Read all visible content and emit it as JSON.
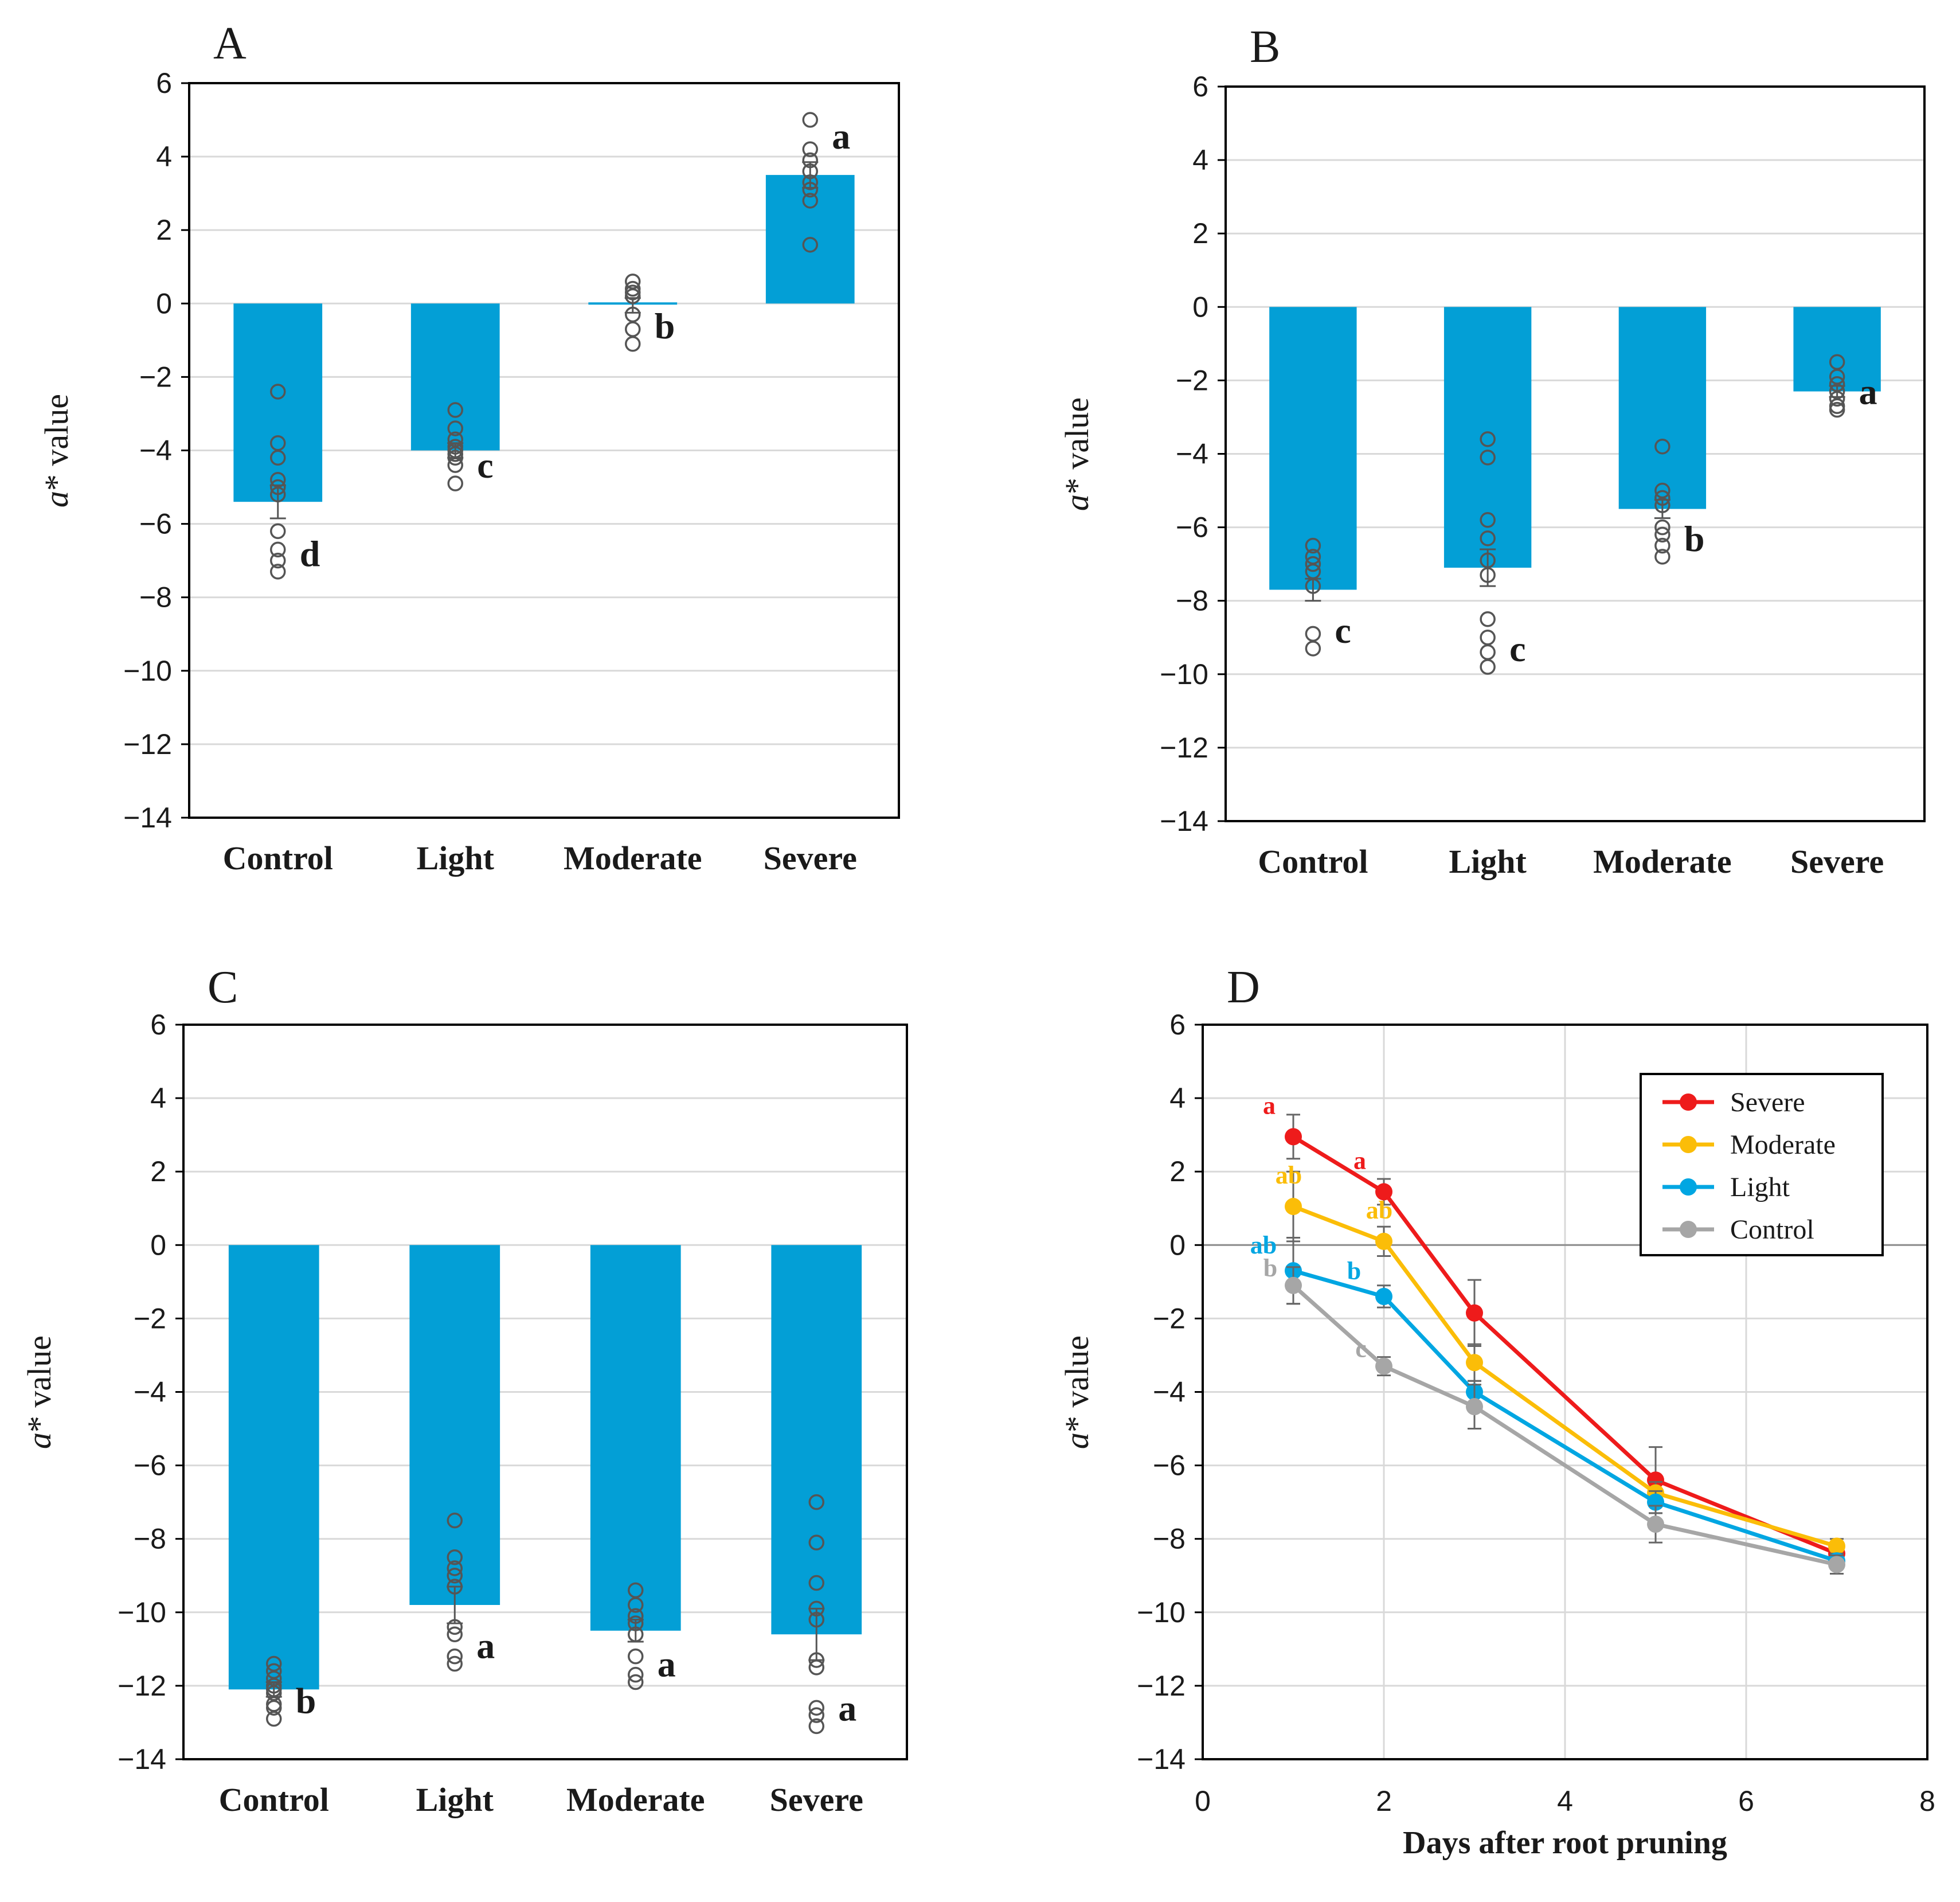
{
  "colors": {
    "bar": "#039fd6",
    "frame": "#000000",
    "grid": "#d9d9d9"
  },
  "chart_data": [
    {
      "type": "bar",
      "panel": "A",
      "ylabel": [
        "a",
        "* value"
      ],
      "ylim": [
        -14,
        6
      ],
      "yticks": [
        6,
        4,
        2,
        0,
        -2,
        -4,
        -6,
        -8,
        -10,
        -12,
        -14
      ],
      "ytick_labels": [
        "6",
        "4",
        "2",
        "0",
        "−2",
        "−4",
        "−6",
        "−8",
        "−10",
        "−12",
        "−14"
      ],
      "categories": [
        "Control",
        "Light",
        "Moderate",
        "Severe"
      ],
      "values": [
        -5.4,
        -4.0,
        -0.05,
        3.5
      ],
      "errors": [
        0.45,
        0.2,
        0.2,
        0.35
      ],
      "letters": [
        "d",
        "c",
        "b",
        "a"
      ],
      "points": [
        [
          -2.4,
          -3.8,
          -4.2,
          -4.8,
          -5.0,
          -5.2,
          -6.2,
          -6.7,
          -7.0,
          -7.3
        ],
        [
          -2.9,
          -3.4,
          -3.7,
          -3.9,
          -4.0,
          -4.1,
          -4.2,
          -4.4,
          -4.9
        ],
        [
          0.6,
          0.4,
          0.3,
          0.2,
          -0.3,
          -0.7,
          -1.1
        ],
        [
          5.0,
          4.2,
          3.9,
          3.6,
          3.3,
          3.1,
          2.8,
          1.6
        ]
      ]
    },
    {
      "type": "bar",
      "panel": "B",
      "ylabel": [
        "a",
        "* value"
      ],
      "ylim": [
        -14,
        6
      ],
      "yticks": [
        6,
        4,
        2,
        0,
        -2,
        -4,
        -6,
        -8,
        -10,
        -12,
        -14
      ],
      "ytick_labels": [
        "6",
        "4",
        "2",
        "0",
        "−2",
        "−4",
        "−6",
        "−8",
        "−10",
        "−12",
        "−14"
      ],
      "categories": [
        "Control",
        "Light",
        "Moderate",
        "Severe"
      ],
      "values": [
        -7.7,
        -7.1,
        -5.5,
        -2.3
      ],
      "errors": [
        0.3,
        0.5,
        0.25,
        0.15
      ],
      "letters": [
        "c",
        "c",
        "b",
        "a"
      ],
      "points": [
        [
          -6.5,
          -6.8,
          -7.0,
          -7.2,
          -7.6,
          -8.9,
          -9.3
        ],
        [
          -3.6,
          -4.1,
          -5.8,
          -6.3,
          -6.9,
          -7.3,
          -8.5,
          -9.0,
          -9.4,
          -9.8
        ],
        [
          -3.8,
          -5.0,
          -5.2,
          -5.4,
          -6.0,
          -6.2,
          -6.5,
          -6.8
        ],
        [
          -1.5,
          -1.9,
          -2.1,
          -2.3,
          -2.5,
          -2.7,
          -2.8
        ]
      ]
    },
    {
      "type": "bar",
      "panel": "C",
      "ylabel": [
        "a",
        "* value"
      ],
      "ylim": [
        -14,
        6
      ],
      "yticks": [
        6,
        4,
        2,
        0,
        -2,
        -4,
        -6,
        -8,
        -10,
        -12,
        -14
      ],
      "ytick_labels": [
        "6",
        "4",
        "2",
        "0",
        "−2",
        "−4",
        "−6",
        "−8",
        "−10",
        "−12",
        "−14"
      ],
      "categories": [
        "Control",
        "Light",
        "Moderate",
        "Severe"
      ],
      "values": [
        -12.1,
        -9.8,
        -10.5,
        -10.6
      ],
      "errors": [
        0.2,
        0.5,
        0.3,
        0.7
      ],
      "letters": [
        "b",
        "a",
        "a",
        "a"
      ],
      "points": [
        [
          -11.4,
          -11.6,
          -11.8,
          -12.0,
          -12.1,
          -12.2,
          -12.5,
          -12.6,
          -12.9
        ],
        [
          -7.5,
          -8.5,
          -8.8,
          -9.0,
          -9.3,
          -10.4,
          -10.6,
          -11.2,
          -11.4
        ],
        [
          -9.4,
          -9.8,
          -10.1,
          -10.3,
          -10.6,
          -11.2,
          -11.7,
          -11.9
        ],
        [
          -7.0,
          -8.1,
          -9.2,
          -9.9,
          -10.2,
          -11.3,
          -11.5,
          -12.6,
          -12.8,
          -13.1
        ]
      ]
    },
    {
      "type": "line",
      "panel": "D",
      "xlabel": "Days after root pruning",
      "ylabel": [
        "a",
        "* value"
      ],
      "xlim": [
        0,
        8
      ],
      "ylim": [
        -14,
        6
      ],
      "xticks": [
        0,
        2,
        4,
        6,
        8
      ],
      "xtick_labels": [
        "0",
        "2",
        "4",
        "6",
        "8"
      ],
      "yticks": [
        6,
        4,
        2,
        0,
        -2,
        -4,
        -6,
        -8,
        -10,
        -12,
        -14
      ],
      "ytick_labels": [
        "6",
        "4",
        "2",
        "0",
        "−2",
        "−4",
        "−6",
        "−8",
        "−10",
        "−12",
        "−14"
      ],
      "x": [
        1,
        2,
        3,
        5,
        7
      ],
      "series": [
        {
          "name": "Severe",
          "color": "#ee1b1b",
          "values": [
            2.95,
            1.45,
            -1.85,
            -6.4,
            -8.4
          ],
          "errors": [
            0.6,
            0.35,
            0.9,
            0.9,
            0.3
          ],
          "letters": [
            "a",
            "a"
          ]
        },
        {
          "name": "Moderate",
          "color": "#fbbd08",
          "values": [
            1.05,
            0.1,
            -3.2,
            -6.75,
            -8.2
          ],
          "errors": [
            0.95,
            0.4,
            0.5,
            0.3,
            0.2
          ],
          "letters": [
            "ab",
            "ab"
          ]
        },
        {
          "name": "Light",
          "color": "#00a6e2",
          "values": [
            -0.7,
            -1.4,
            -4.0,
            -7.0,
            -8.6
          ],
          "errors": [
            0.9,
            0.3,
            0.3,
            0.3,
            0.2
          ],
          "letters": [
            "ab",
            "b"
          ]
        },
        {
          "name": "Control",
          "color": "#a6a6a6",
          "values": [
            -1.1,
            -3.3,
            -4.4,
            -7.6,
            -8.7
          ],
          "errors": [
            0.5,
            0.25,
            0.6,
            0.5,
            0.25
          ],
          "letters": [
            "b",
            "c"
          ]
        }
      ]
    }
  ]
}
